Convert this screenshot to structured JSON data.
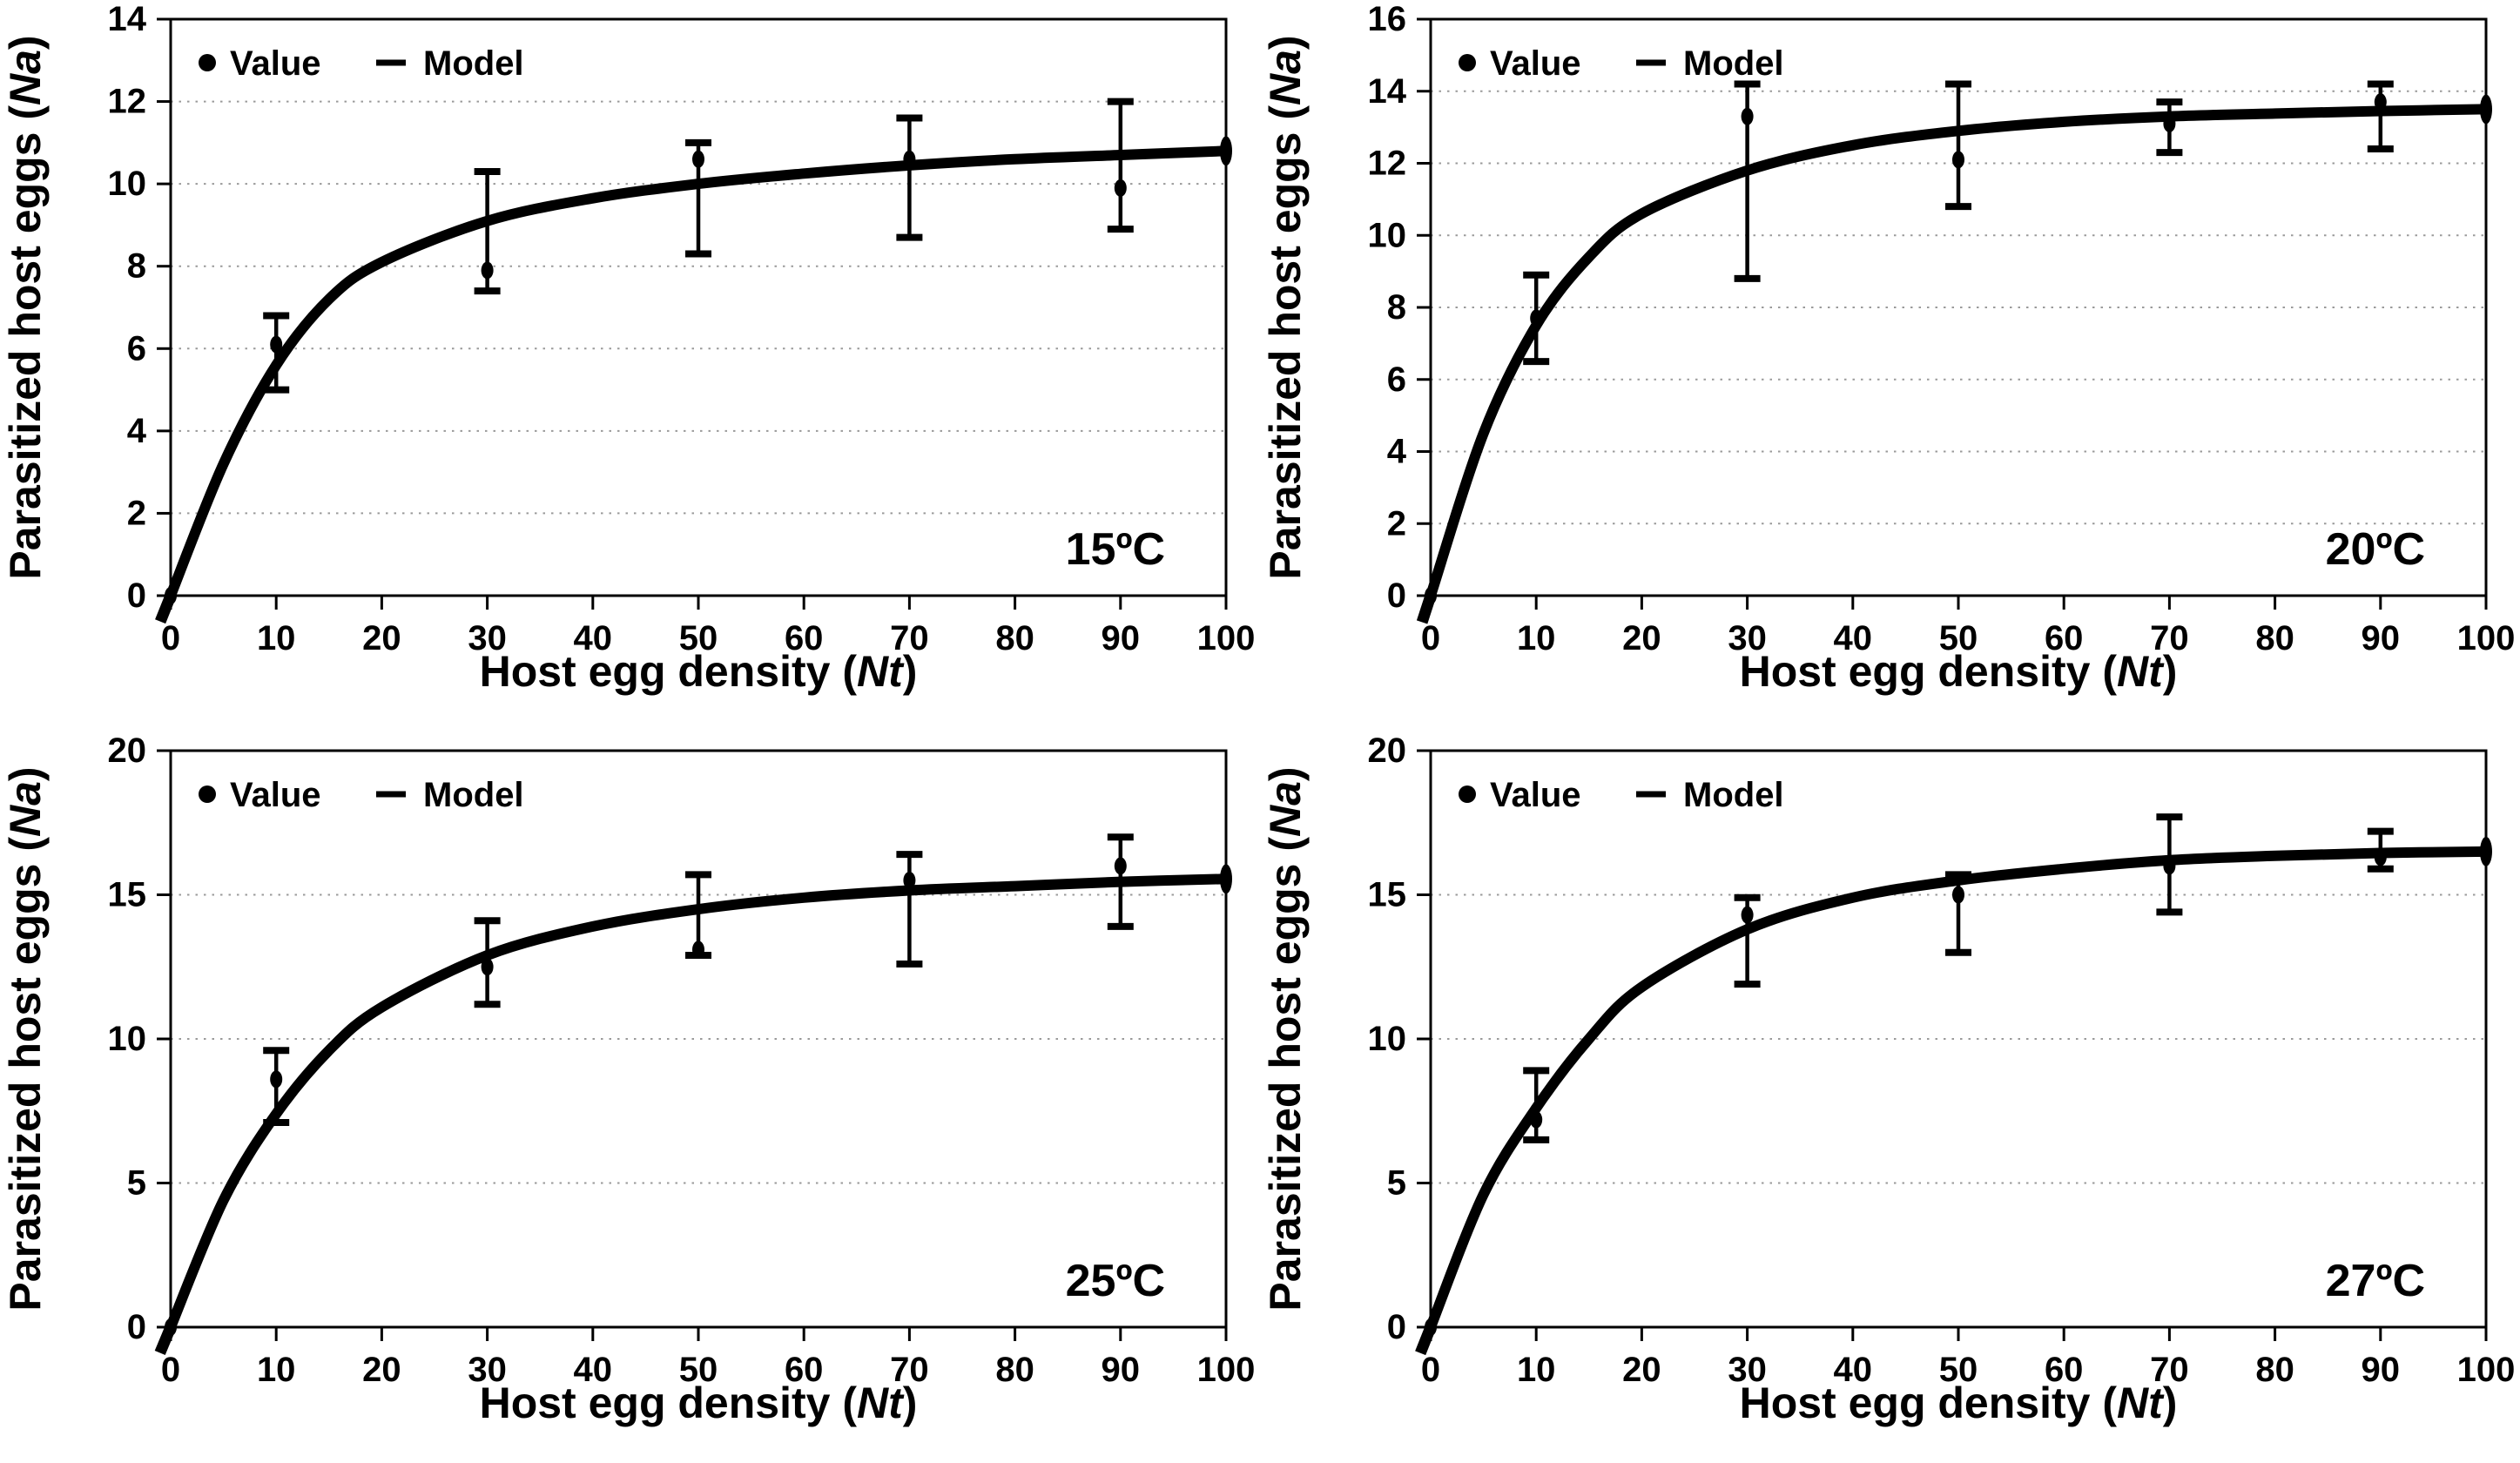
{
  "figure": {
    "x_axis_label_prefix": "Host egg density (",
    "x_axis_label_var": "Nt",
    "x_axis_label_suffix": ")",
    "y_axis_label_prefix": "Parasitized host eggs (",
    "y_axis_label_var": "Na",
    "y_axis_label_suffix": ")",
    "legend": {
      "value_label": "Value",
      "model_label": "Model"
    },
    "colors": {
      "ink": "#000000",
      "grid": "#9a9a9a",
      "background": "#ffffff"
    }
  },
  "chart_data": [
    {
      "type": "line",
      "title": "15ºC",
      "temperature_label": "15ºC",
      "xlabel": "Host egg density (Nt)",
      "ylabel": "Parasitized host eggs (Na)",
      "legend": [
        "Value",
        "Model"
      ],
      "grid": "horizontal-dotted",
      "xlim": [
        0,
        100
      ],
      "ylim": [
        0,
        14
      ],
      "x_ticks": [
        0,
        10,
        20,
        30,
        40,
        50,
        60,
        70,
        80,
        90,
        100
      ],
      "y_ticks": [
        0,
        2,
        4,
        6,
        8,
        10,
        12,
        14
      ],
      "points": {
        "x": [
          0,
          10,
          30,
          50,
          70,
          90
        ],
        "y": [
          0,
          6.1,
          7.9,
          10.6,
          10.6,
          9.9
        ],
        "err_low": [
          null,
          5.0,
          7.4,
          8.3,
          8.7,
          8.9
        ],
        "err_high": [
          null,
          6.8,
          10.3,
          11.0,
          11.6,
          12.0
        ]
      },
      "model_curve": {
        "x": [
          0,
          5,
          10,
          15,
          20,
          30,
          40,
          50,
          60,
          70,
          80,
          90,
          100
        ],
        "y": [
          0,
          3.2,
          5.6,
          7.2,
          8.1,
          9.1,
          9.65,
          10.0,
          10.25,
          10.45,
          10.6,
          10.7,
          10.8
        ],
        "end_marker_x": 100
      }
    },
    {
      "type": "line",
      "title": "20ºC",
      "temperature_label": "20ºC",
      "xlabel": "Host egg density (Nt)",
      "ylabel": "Parasitized host eggs (Na)",
      "legend": [
        "Value",
        "Model"
      ],
      "grid": "horizontal-dotted",
      "xlim": [
        0,
        100
      ],
      "ylim": [
        0,
        16
      ],
      "x_ticks": [
        0,
        10,
        20,
        30,
        40,
        50,
        60,
        70,
        80,
        90,
        100
      ],
      "y_ticks": [
        0,
        2,
        4,
        6,
        8,
        10,
        12,
        14,
        16
      ],
      "points": {
        "x": [
          0,
          10,
          30,
          50,
          70,
          90
        ],
        "y": [
          0,
          7.7,
          13.3,
          12.1,
          13.1,
          13.7
        ],
        "err_low": [
          null,
          6.5,
          8.8,
          10.8,
          12.3,
          12.4
        ],
        "err_high": [
          null,
          8.9,
          14.2,
          14.2,
          13.7,
          14.2
        ]
      },
      "model_curve": {
        "x": [
          0,
          5,
          10,
          15,
          20,
          30,
          40,
          50,
          60,
          70,
          80,
          90,
          100
        ],
        "y": [
          0,
          4.5,
          7.5,
          9.4,
          10.6,
          11.8,
          12.5,
          12.9,
          13.15,
          13.3,
          13.38,
          13.45,
          13.5
        ],
        "end_marker_x": 100
      }
    },
    {
      "type": "line",
      "title": "25ºC",
      "temperature_label": "25ºC",
      "xlabel": "Host egg density (Nt)",
      "ylabel": "Parasitized host eggs (Na)",
      "legend": [
        "Value",
        "Model"
      ],
      "grid": "horizontal-dotted",
      "xlim": [
        0,
        100
      ],
      "ylim": [
        0,
        20
      ],
      "x_ticks": [
        0,
        10,
        20,
        30,
        40,
        50,
        60,
        70,
        80,
        90,
        100
      ],
      "y_ticks": [
        0,
        5,
        10,
        15,
        20
      ],
      "points": {
        "x": [
          0,
          10,
          30,
          50,
          70,
          90
        ],
        "y": [
          0,
          8.6,
          12.5,
          13.1,
          15.5,
          16.0
        ],
        "err_low": [
          null,
          7.1,
          11.2,
          12.9,
          12.6,
          13.9
        ],
        "err_high": [
          null,
          9.6,
          14.1,
          15.7,
          16.4,
          17.0
        ]
      },
      "model_curve": {
        "x": [
          0,
          5,
          10,
          15,
          20,
          30,
          40,
          50,
          60,
          70,
          80,
          90,
          100
        ],
        "y": [
          0,
          4.4,
          7.4,
          9.6,
          11.1,
          12.9,
          13.9,
          14.5,
          14.9,
          15.15,
          15.3,
          15.45,
          15.55
        ],
        "end_marker_x": 100
      }
    },
    {
      "type": "line",
      "title": "27ºC",
      "temperature_label": "27ºC",
      "xlabel": "Host egg density (Nt)",
      "ylabel": "Parasitized host eggs (Na)",
      "legend": [
        "Value",
        "Model"
      ],
      "grid": "horizontal-dotted",
      "xlim": [
        0,
        100
      ],
      "ylim": [
        0,
        20
      ],
      "x_ticks": [
        0,
        10,
        20,
        30,
        40,
        50,
        60,
        70,
        80,
        90,
        100
      ],
      "y_ticks": [
        0,
        5,
        10,
        15,
        20
      ],
      "points": {
        "x": [
          0,
          10,
          30,
          50,
          70,
          90
        ],
        "y": [
          0,
          7.2,
          14.3,
          15.0,
          16.0,
          16.3
        ],
        "err_low": [
          null,
          6.5,
          11.9,
          13.0,
          14.4,
          15.9
        ],
        "err_high": [
          null,
          8.9,
          14.9,
          15.7,
          17.7,
          17.2
        ]
      },
      "model_curve": {
        "x": [
          0,
          5,
          10,
          15,
          20,
          30,
          40,
          50,
          60,
          70,
          80,
          90,
          100
        ],
        "y": [
          0,
          4.6,
          7.6,
          10.0,
          11.8,
          13.8,
          14.9,
          15.5,
          15.9,
          16.2,
          16.35,
          16.45,
          16.5
        ],
        "end_marker_x": 100
      }
    }
  ]
}
